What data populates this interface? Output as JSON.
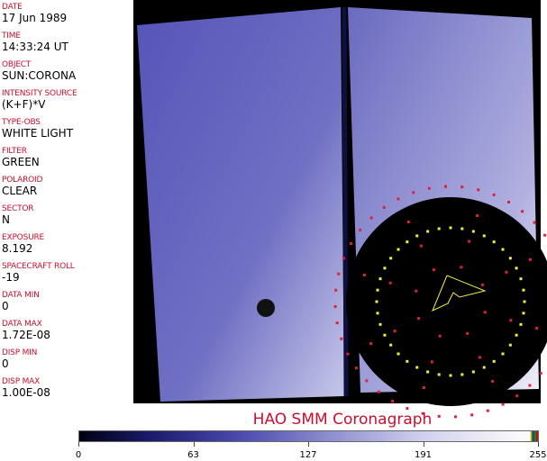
{
  "fields": [
    {
      "label": "DATE",
      "value": "17 Jun 1989"
    },
    {
      "label": "TIME",
      "value": "14:33:24 UT"
    },
    {
      "label": "OBJECT",
      "value": "SUN:CORONA"
    },
    {
      "label": "INTENSITY SOURCE",
      "value": "(K+F)*V"
    },
    {
      "label": "TYPE-OBS",
      "value": "WHITE LIGHT"
    },
    {
      "label": "FILTER",
      "value": "GREEN"
    },
    {
      "label": "POLAROID",
      "value": "CLEAR"
    },
    {
      "label": "SECTOR",
      "value": "N"
    },
    {
      "label": "EXPOSURE",
      "value": "8.192"
    },
    {
      "label": "SPACECRAFT ROLL",
      "value": "-19"
    },
    {
      "label": "DATA MIN",
      "value": "0"
    },
    {
      "label": "DATA MAX",
      "value": "1.72E-08"
    },
    {
      "label": "DISP MIN",
      "value": "0"
    },
    {
      "label": "DISP MAX",
      "value": "1.00E-08"
    }
  ],
  "title": "HAO  SMM  Coronagraph",
  "colorbar": {
    "ticks": [
      "0",
      "63",
      "127",
      "191",
      "255"
    ]
  },
  "colors": {
    "label": "#c8102e",
    "marker_red": "#e0203a",
    "marker_yellow": "#f0f040"
  }
}
